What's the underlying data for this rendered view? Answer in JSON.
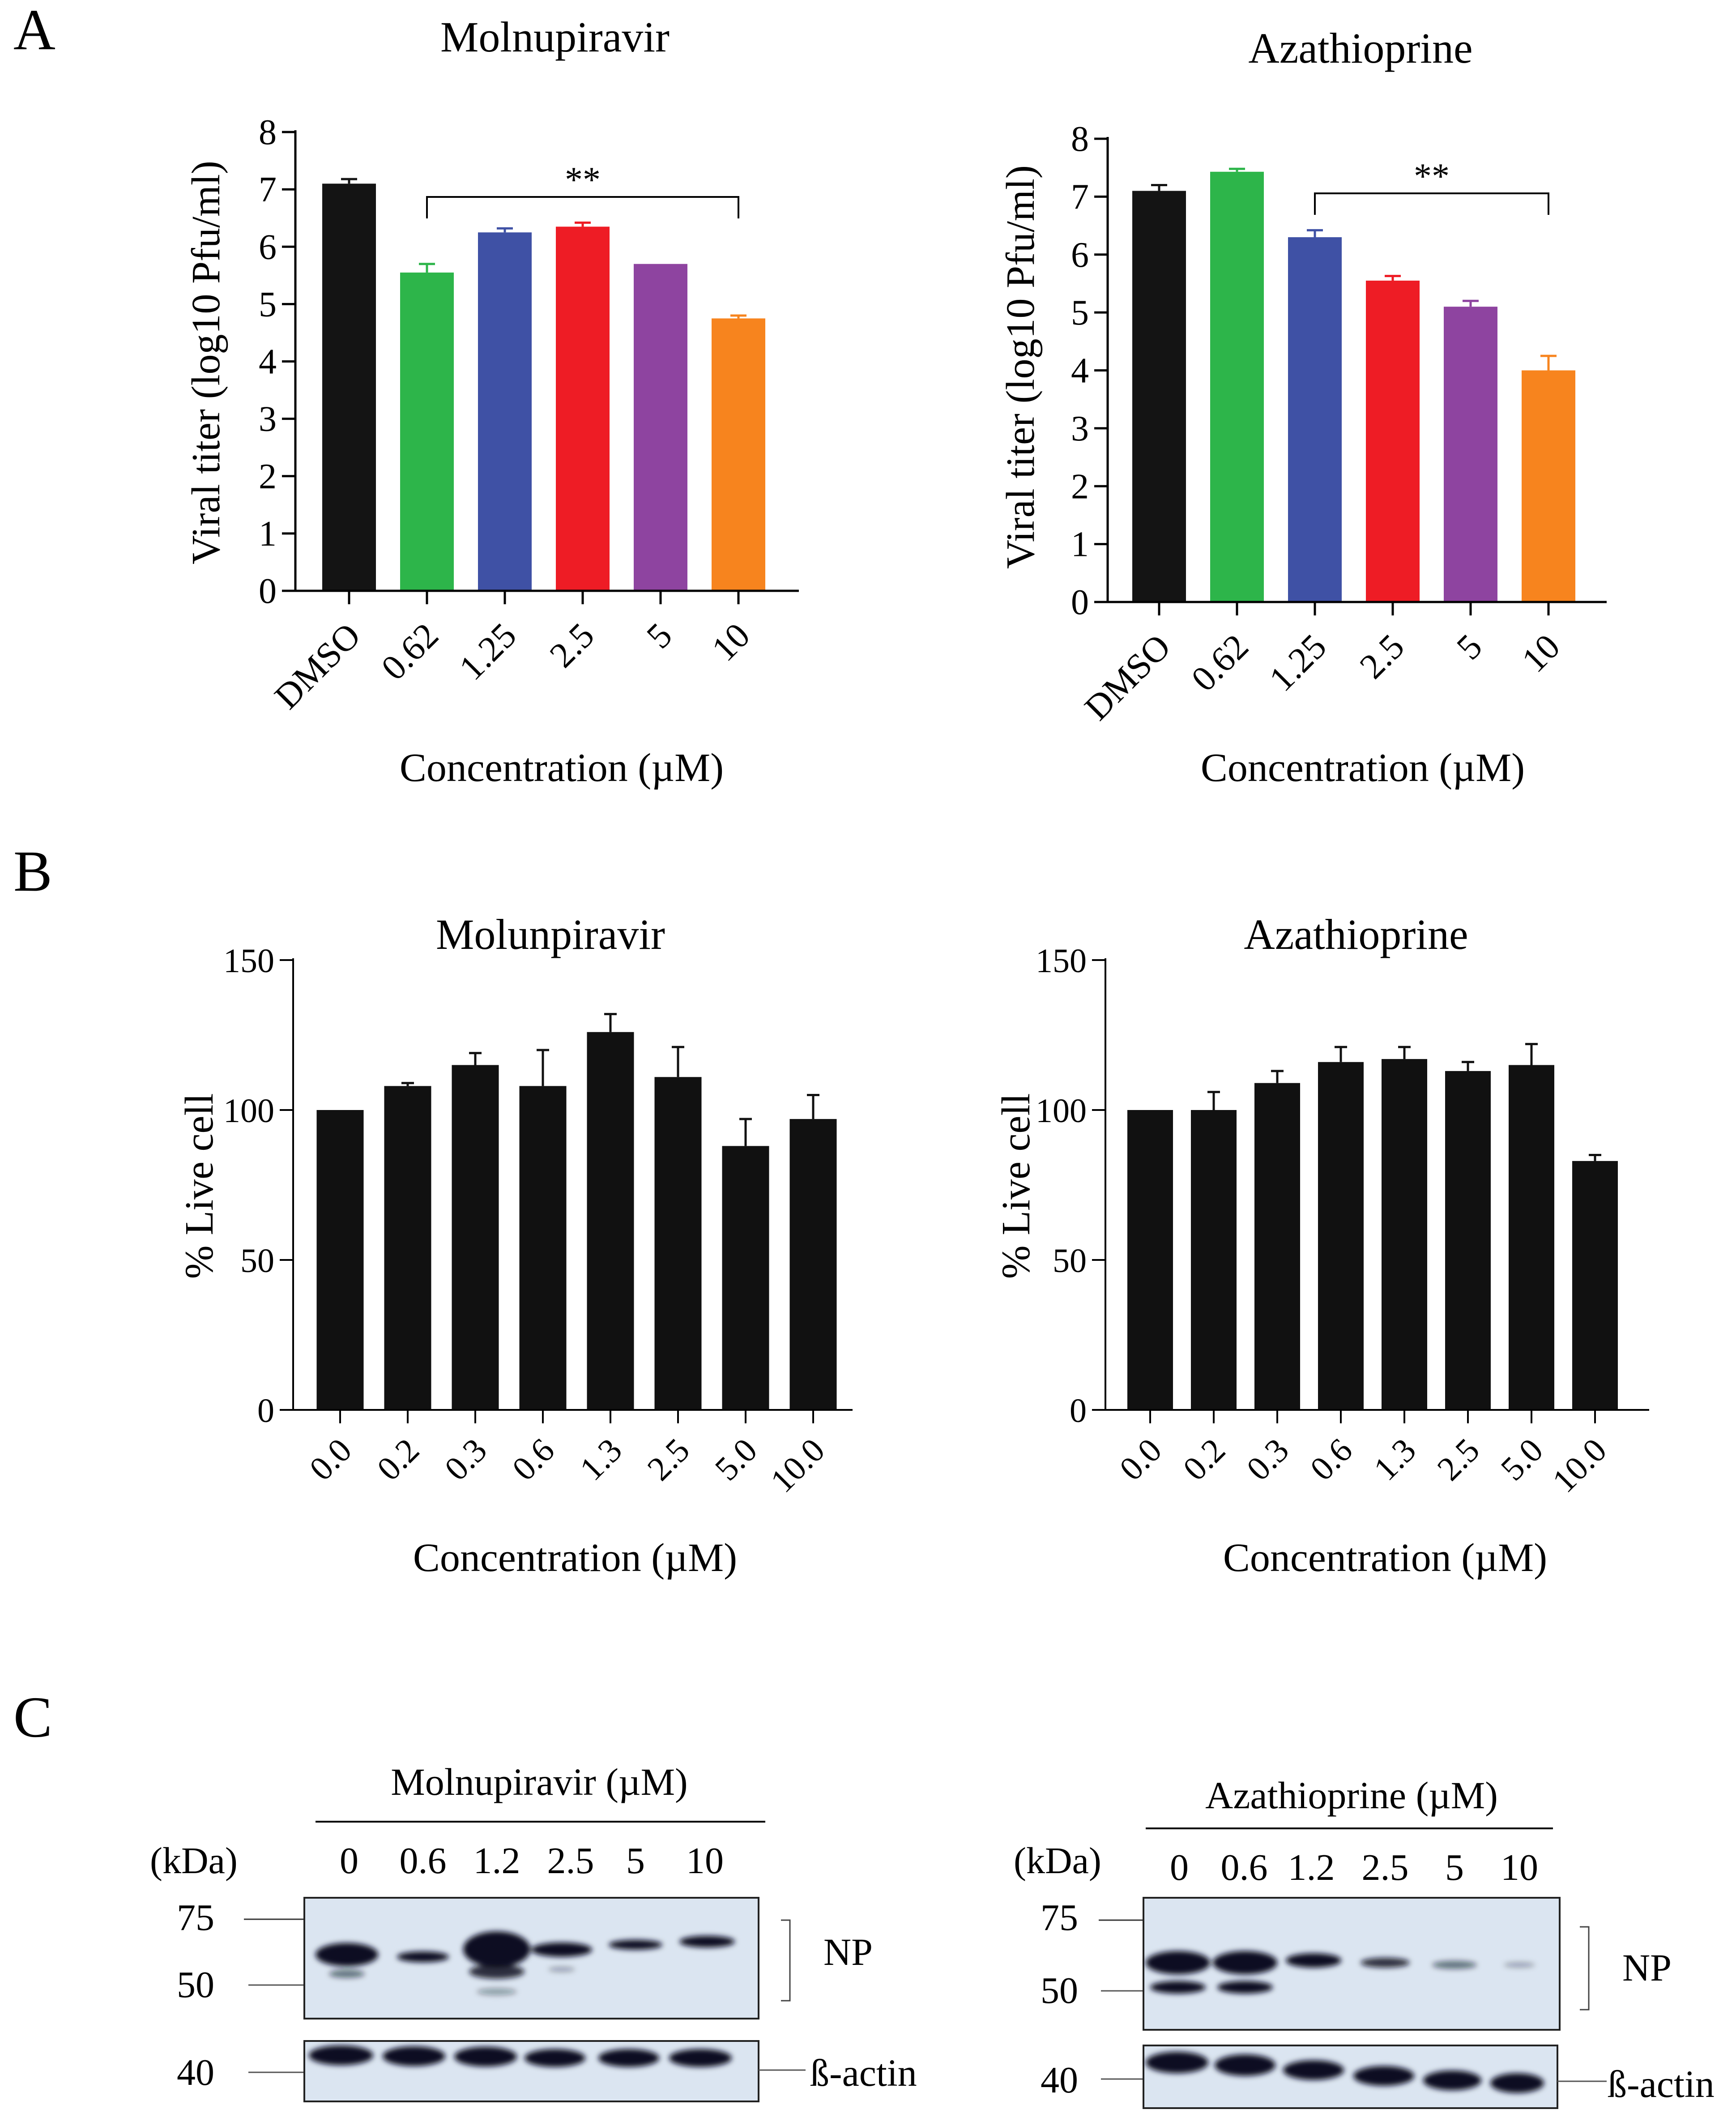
{
  "panels": {
    "A": "A",
    "B": "B",
    "C": "C"
  },
  "chart_data": [
    {
      "id": "a1",
      "type": "bar",
      "title": "Molnupiravir",
      "xlabel": "Concentration (µM)",
      "ylabel": "Viral titer (log10 Pfu/ml)",
      "ylim": [
        0,
        8
      ],
      "yticks": [
        "0",
        "1",
        "2",
        "3",
        "4",
        "5",
        "6",
        "7",
        "8"
      ],
      "categories": [
        "DMSO",
        "0.62",
        "1.25",
        "2.5",
        "5",
        "10"
      ],
      "values": [
        7.1,
        5.55,
        6.25,
        6.35,
        5.7,
        4.75
      ],
      "errors": [
        0.08,
        0.15,
        0.07,
        0.07,
        0.0,
        0.05
      ],
      "colors": [
        "#141414",
        "#2db54a",
        "#3f51a5",
        "#ee1c25",
        "#8e44a0",
        "#f7841e"
      ],
      "significance": {
        "label": "**",
        "from": 1,
        "to": 5
      }
    },
    {
      "id": "a2",
      "type": "bar",
      "title": "Azathioprine",
      "xlabel": "Concentration (µM)",
      "ylabel": "Viral titer (log10 Pfu/ml)",
      "ylim": [
        0,
        8
      ],
      "yticks": [
        "0",
        "1",
        "2",
        "3",
        "4",
        "5",
        "6",
        "7",
        "8"
      ],
      "categories": [
        "DMSO",
        "0.62",
        "1.25",
        "2.5",
        "5",
        "10"
      ],
      "values": [
        7.1,
        7.43,
        6.3,
        5.55,
        5.1,
        4.0
      ],
      "errors": [
        0.1,
        0.05,
        0.12,
        0.08,
        0.1,
        0.25
      ],
      "colors": [
        "#141414",
        "#2db54a",
        "#3f51a5",
        "#ee1c25",
        "#8e44a0",
        "#f7841e"
      ],
      "significance": {
        "label": "**",
        "from": 2,
        "to": 5
      }
    },
    {
      "id": "b1",
      "type": "bar",
      "title": "Molunpiravir",
      "xlabel": "Concentration (µM)",
      "ylabel": "% Live cell",
      "ylim": [
        0,
        150
      ],
      "yticks": [
        "0",
        "50",
        "100",
        "150"
      ],
      "categories": [
        "0.0",
        "0.2",
        "0.3",
        "0.6",
        "1.3",
        "2.5",
        "5.0",
        "10.0"
      ],
      "values": [
        100,
        108,
        115,
        108,
        126,
        111,
        88,
        97
      ],
      "errors": [
        0,
        1,
        4,
        12,
        6,
        10,
        9,
        8
      ],
      "colors": [
        "#111111",
        "#111111",
        "#111111",
        "#111111",
        "#111111",
        "#111111",
        "#111111",
        "#111111"
      ]
    },
    {
      "id": "b2",
      "type": "bar",
      "title": "Azathioprine",
      "xlabel": "Concentration (µM)",
      "ylabel": "% Live cell",
      "ylim": [
        0,
        150
      ],
      "yticks": [
        "0",
        "50",
        "100",
        "150"
      ],
      "categories": [
        "0.0",
        "0.2",
        "0.3",
        "0.6",
        "1.3",
        "2.5",
        "5.0",
        "10.0"
      ],
      "values": [
        100,
        100,
        109,
        116,
        117,
        113,
        115,
        83
      ],
      "errors": [
        0,
        6,
        4,
        5,
        4,
        3,
        7,
        2
      ],
      "colors": [
        "#111111",
        "#111111",
        "#111111",
        "#111111",
        "#111111",
        "#111111",
        "#111111",
        "#111111"
      ]
    }
  ],
  "blots": {
    "left": {
      "title": "Molnupiravir (µM)",
      "kda_label": "(kDa)",
      "lanes": [
        "0",
        "0.6",
        "1.2",
        "2.5",
        "5",
        "10"
      ],
      "markers": [
        "75",
        "50",
        "40"
      ],
      "np_label": "NP",
      "actin_label": "ß-actin"
    },
    "right": {
      "title": "Azathioprine (µM)",
      "kda_label": "(kDa)",
      "lanes": [
        "0",
        "0.6",
        "1.2",
        "2.5",
        "5",
        "10"
      ],
      "markers": [
        "75",
        "50",
        "40"
      ],
      "np_label": "NP",
      "actin_label": "ß-actin"
    }
  }
}
